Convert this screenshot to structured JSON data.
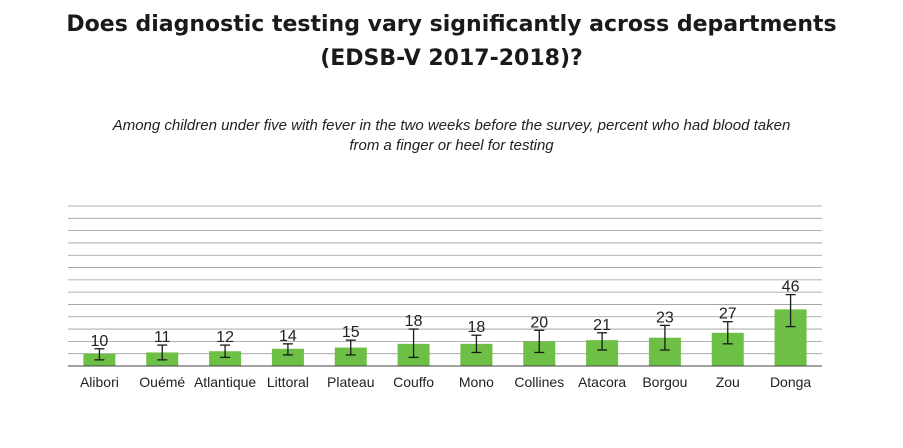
{
  "title_line1": "Does diagnostic testing vary significantly across departments",
  "title_line2": "(EDSB-V 2017-2018)?",
  "subtitle_line1": "Among children under five with fever in the two weeks before the survey, percent who had blood taken",
  "subtitle_line2": "from a finger or heel for testing",
  "colors": {
    "bar": "#6dbf45",
    "grid": "#9a9a9a",
    "error": "#1a1a1a"
  },
  "chart_data": {
    "type": "bar",
    "title": "Does diagnostic testing vary significantly across departments (EDSB-V 2017-2018)?",
    "subtitle": "Among children under five with fever in the two weeks before the survey, percent who had blood taken from a finger or heel for testing",
    "categories": [
      "Alibori",
      "Ouémé",
      "Atlantique",
      "Littoral",
      "Plateau",
      "Couffo",
      "Mono",
      "Collines",
      "Atacora",
      "Borgou",
      "Zou",
      "Donga"
    ],
    "values": [
      10,
      11,
      12,
      14,
      15,
      18,
      18,
      20,
      21,
      23,
      27,
      46
    ],
    "error_low": [
      5,
      5,
      7,
      9,
      9,
      7,
      11,
      11,
      13,
      13,
      18,
      32
    ],
    "error_high": [
      14,
      17,
      17,
      18,
      21,
      30,
      25,
      29,
      27,
      33,
      36,
      58
    ],
    "ylim": [
      0,
      130
    ],
    "grid": true,
    "xlabel": "",
    "ylabel": ""
  }
}
